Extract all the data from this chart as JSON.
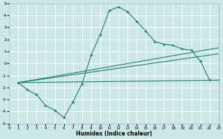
{
  "xlabel": "Humidex (Indice chaleur)",
  "xlim": [
    0,
    23
  ],
  "ylim": [
    -5,
    5
  ],
  "xticks": [
    0,
    1,
    2,
    3,
    4,
    5,
    6,
    7,
    8,
    9,
    10,
    11,
    12,
    13,
    14,
    15,
    16,
    17,
    18,
    19,
    20,
    21,
    22,
    23
  ],
  "yticks": [
    -5,
    -4,
    -3,
    -2,
    -1,
    0,
    1,
    2,
    3,
    4,
    5
  ],
  "bg_color": "#cce8e6",
  "grid_color": "#ffffff",
  "line_color": "#1a7a6e",
  "curve_x": [
    1,
    2,
    3,
    4,
    5,
    6,
    7,
    8,
    9,
    10,
    11,
    12,
    13,
    14,
    15,
    16,
    17,
    18,
    19,
    20,
    21,
    22,
    23
  ],
  "curve_y": [
    -1.6,
    -2.2,
    -2.6,
    -3.5,
    -3.9,
    -4.5,
    -3.2,
    -1.7,
    0.7,
    2.4,
    4.4,
    4.7,
    4.3,
    3.5,
    2.7,
    1.8,
    1.6,
    1.5,
    1.2,
    1.1,
    0.2,
    -1.4,
    -1.4
  ],
  "straight_lines": [
    {
      "x": [
        1,
        23
      ],
      "y": [
        -1.6,
        1.3
      ]
    },
    {
      "x": [
        1,
        23
      ],
      "y": [
        -1.6,
        0.8
      ]
    },
    {
      "x": [
        1,
        23
      ],
      "y": [
        -1.6,
        -1.4
      ]
    }
  ]
}
